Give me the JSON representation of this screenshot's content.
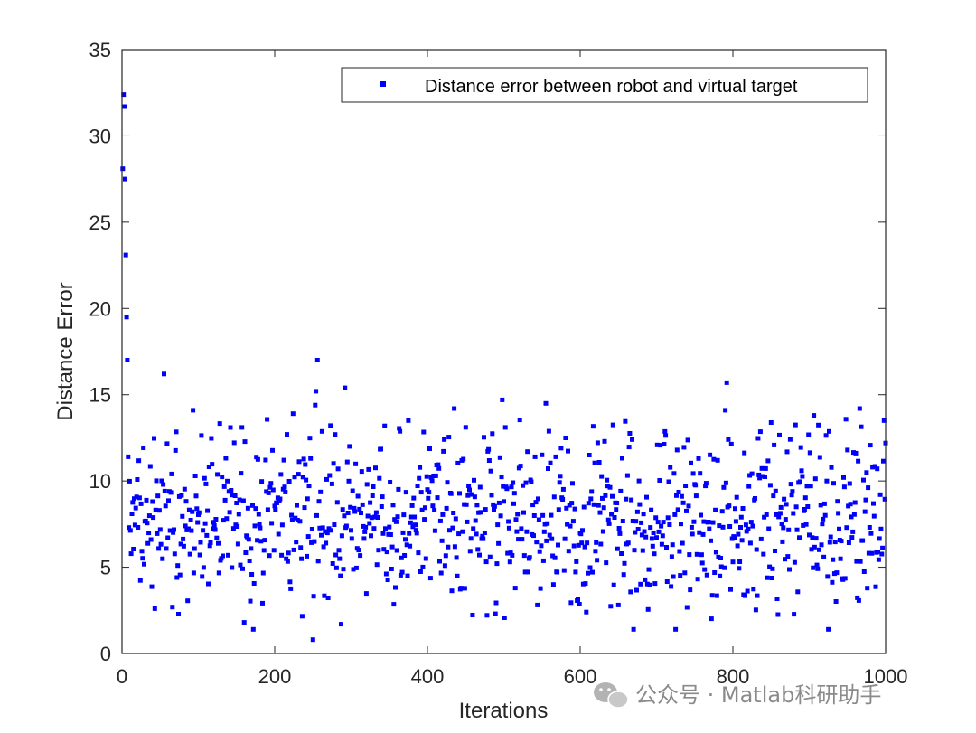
{
  "chart_data": {
    "type": "scatter",
    "title": "",
    "xlabel": "Iterations",
    "ylabel": "Distance Error",
    "xlim": [
      0,
      1000
    ],
    "ylim": [
      0,
      35
    ],
    "xticks": [
      0,
      200,
      400,
      600,
      800,
      1000
    ],
    "yticks": [
      0,
      5,
      10,
      15,
      20,
      25,
      30,
      35
    ],
    "grid": false,
    "legend_position": "top-right",
    "series": [
      {
        "name": "Distance error between robot and virtual target",
        "color": "#0000ff",
        "marker": "square",
        "notable_points": [
          {
            "x": 1,
            "y": 28.1
          },
          {
            "x": 2,
            "y": 32.4
          },
          {
            "x": 3,
            "y": 31.7
          },
          {
            "x": 4,
            "y": 27.5
          },
          {
            "x": 5,
            "y": 23.1
          },
          {
            "x": 6,
            "y": 19.5
          },
          {
            "x": 7,
            "y": 17.0
          },
          {
            "x": 8,
            "y": 11.4
          },
          {
            "x": 9,
            "y": 7.3
          },
          {
            "x": 55,
            "y": 16.2
          },
          {
            "x": 93,
            "y": 14.1
          },
          {
            "x": 142,
            "y": 13.1
          },
          {
            "x": 160,
            "y": 1.8
          },
          {
            "x": 172,
            "y": 1.4
          },
          {
            "x": 224,
            "y": 13.9
          },
          {
            "x": 250,
            "y": 0.8
          },
          {
            "x": 253,
            "y": 14.4
          },
          {
            "x": 254,
            "y": 15.2
          },
          {
            "x": 256,
            "y": 17.0
          },
          {
            "x": 287,
            "y": 1.7
          },
          {
            "x": 292,
            "y": 15.4
          },
          {
            "x": 375,
            "y": 13.5
          },
          {
            "x": 435,
            "y": 14.2
          },
          {
            "x": 498,
            "y": 14.7
          },
          {
            "x": 555,
            "y": 14.5
          },
          {
            "x": 670,
            "y": 1.4
          },
          {
            "x": 725,
            "y": 1.4
          },
          {
            "x": 790,
            "y": 14.1
          },
          {
            "x": 792,
            "y": 15.7
          },
          {
            "x": 906,
            "y": 13.8
          },
          {
            "x": 925,
            "y": 1.4
          },
          {
            "x": 966,
            "y": 14.2
          },
          {
            "x": 998,
            "y": 13.5
          },
          {
            "x": 1000,
            "y": 12.2
          }
        ],
        "bulk": {
          "x_range": [
            10,
            1000
          ],
          "count": 990,
          "y_min": 2.0,
          "y_max": 13.7,
          "typical_mean": 7.0
        }
      }
    ]
  },
  "watermark": {
    "text": "公众号 · Matlab科研助手",
    "icon": "wechat-icon"
  }
}
